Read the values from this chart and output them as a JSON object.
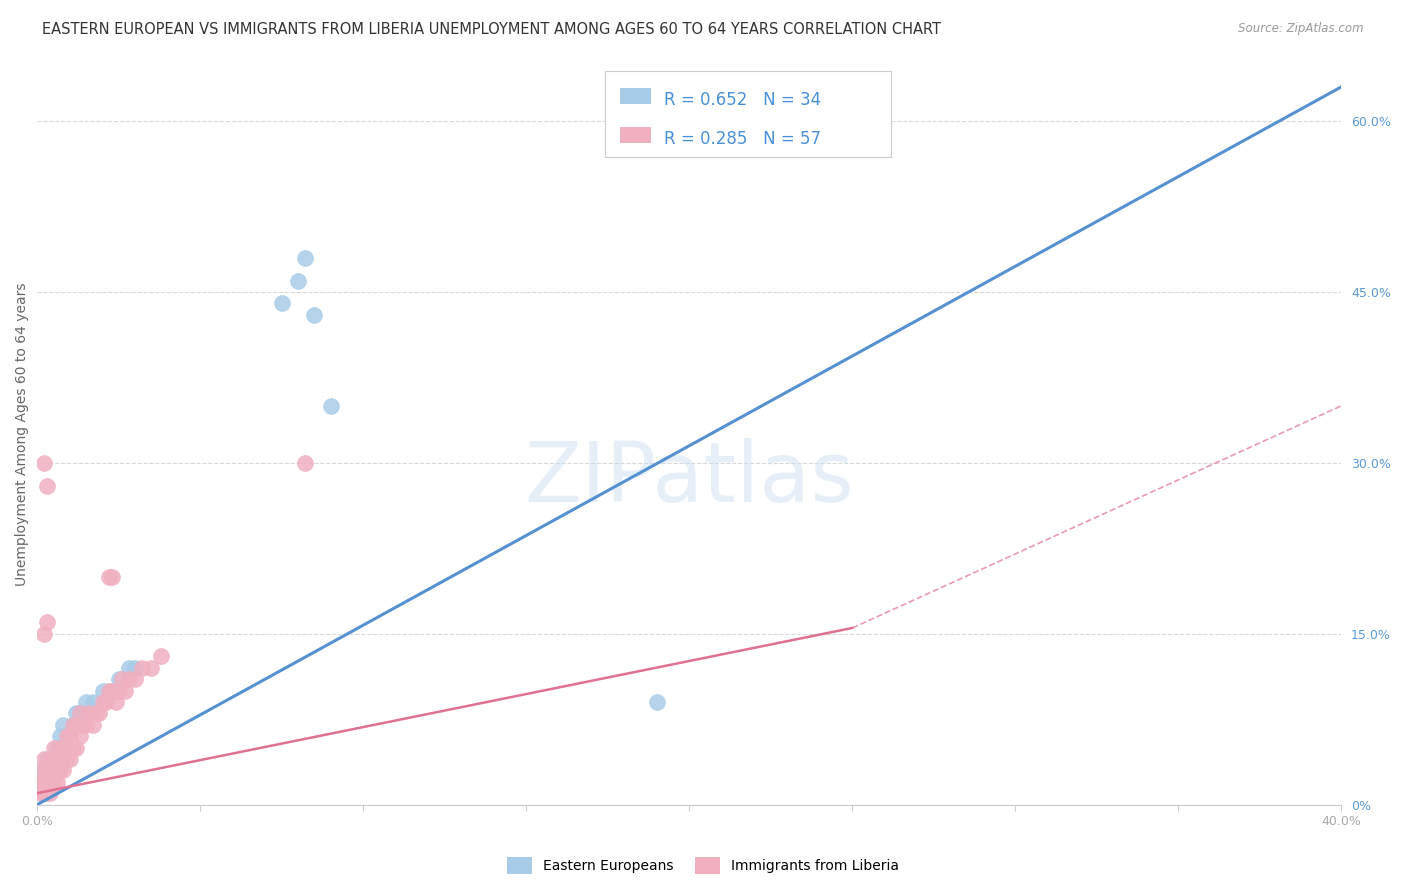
{
  "title": "EASTERN EUROPEAN VS IMMIGRANTS FROM LIBERIA UNEMPLOYMENT AMONG AGES 60 TO 64 YEARS CORRELATION CHART",
  "source": "Source: ZipAtlas.com",
  "ylabel": "Unemployment Among Ages 60 to 64 years",
  "watermark": "ZIPatlas",
  "xlim": [
    0.0,
    0.4
  ],
  "ylim": [
    0.0,
    0.65
  ],
  "xtick_pos": [
    0.0,
    0.05,
    0.1,
    0.15,
    0.2,
    0.25,
    0.3,
    0.35,
    0.4
  ],
  "yticks_right": [
    0.0,
    0.15,
    0.3,
    0.45,
    0.6
  ],
  "ytick_right_labels": [
    "0%",
    "15.0%",
    "30.0%",
    "45.0%",
    "60.0%"
  ],
  "color_blue": "#a8cce8",
  "color_pink": "#f0b0c0",
  "color_blue_line": "#5590d0",
  "color_pink_line": "#e07090",
  "color_blue_text": "#4a90d9",
  "color_right_tick": "#5a9ad5",
  "grid_color": "#d8d8d8",
  "background_color": "#ffffff",
  "title_fontsize": 10.5,
  "axis_label_fontsize": 10,
  "tick_fontsize": 9,
  "legend_fontsize": 12,
  "eastern_europeans_x": [
    0.001,
    0.001,
    0.002,
    0.002,
    0.003,
    0.003,
    0.004,
    0.004,
    0.005,
    0.005,
    0.006,
    0.006,
    0.007,
    0.007,
    0.008,
    0.008,
    0.009,
    0.01,
    0.011,
    0.012,
    0.013,
    0.015,
    0.017,
    0.02,
    0.022,
    0.025,
    0.028,
    0.03,
    0.075,
    0.08,
    0.082,
    0.085,
    0.09,
    0.19
  ],
  "eastern_europeans_y": [
    0.01,
    0.02,
    0.01,
    0.03,
    0.02,
    0.04,
    0.02,
    0.03,
    0.03,
    0.04,
    0.03,
    0.05,
    0.04,
    0.06,
    0.05,
    0.07,
    0.06,
    0.06,
    0.07,
    0.08,
    0.08,
    0.09,
    0.09,
    0.1,
    0.1,
    0.11,
    0.12,
    0.12,
    0.44,
    0.46,
    0.48,
    0.43,
    0.35,
    0.09
  ],
  "liberia_x": [
    0.001,
    0.001,
    0.001,
    0.002,
    0.002,
    0.002,
    0.003,
    0.003,
    0.003,
    0.004,
    0.004,
    0.004,
    0.005,
    0.005,
    0.005,
    0.006,
    0.006,
    0.007,
    0.007,
    0.008,
    0.008,
    0.009,
    0.009,
    0.01,
    0.01,
    0.011,
    0.011,
    0.012,
    0.012,
    0.013,
    0.013,
    0.014,
    0.015,
    0.016,
    0.017,
    0.018,
    0.019,
    0.02,
    0.021,
    0.022,
    0.023,
    0.024,
    0.025,
    0.026,
    0.027,
    0.028,
    0.03,
    0.032,
    0.035,
    0.038,
    0.002,
    0.003,
    0.022,
    0.023,
    0.082,
    0.002,
    0.003
  ],
  "liberia_y": [
    0.01,
    0.02,
    0.03,
    0.01,
    0.02,
    0.04,
    0.01,
    0.02,
    0.03,
    0.01,
    0.02,
    0.04,
    0.02,
    0.03,
    0.05,
    0.02,
    0.04,
    0.03,
    0.05,
    0.03,
    0.05,
    0.04,
    0.06,
    0.04,
    0.06,
    0.05,
    0.07,
    0.05,
    0.07,
    0.06,
    0.08,
    0.07,
    0.07,
    0.08,
    0.07,
    0.08,
    0.08,
    0.09,
    0.09,
    0.1,
    0.1,
    0.09,
    0.1,
    0.11,
    0.1,
    0.11,
    0.11,
    0.12,
    0.12,
    0.13,
    0.3,
    0.28,
    0.2,
    0.2,
    0.3,
    0.15,
    0.16
  ],
  "blue_regline": [
    [
      0.0,
      0.4
    ],
    [
      0.0,
      0.63
    ]
  ],
  "pink_regline_solid": [
    [
      0.0,
      0.25
    ],
    [
      0.01,
      0.155
    ]
  ],
  "pink_regline_dashed": [
    [
      0.25,
      0.4
    ],
    [
      0.155,
      0.35
    ]
  ]
}
